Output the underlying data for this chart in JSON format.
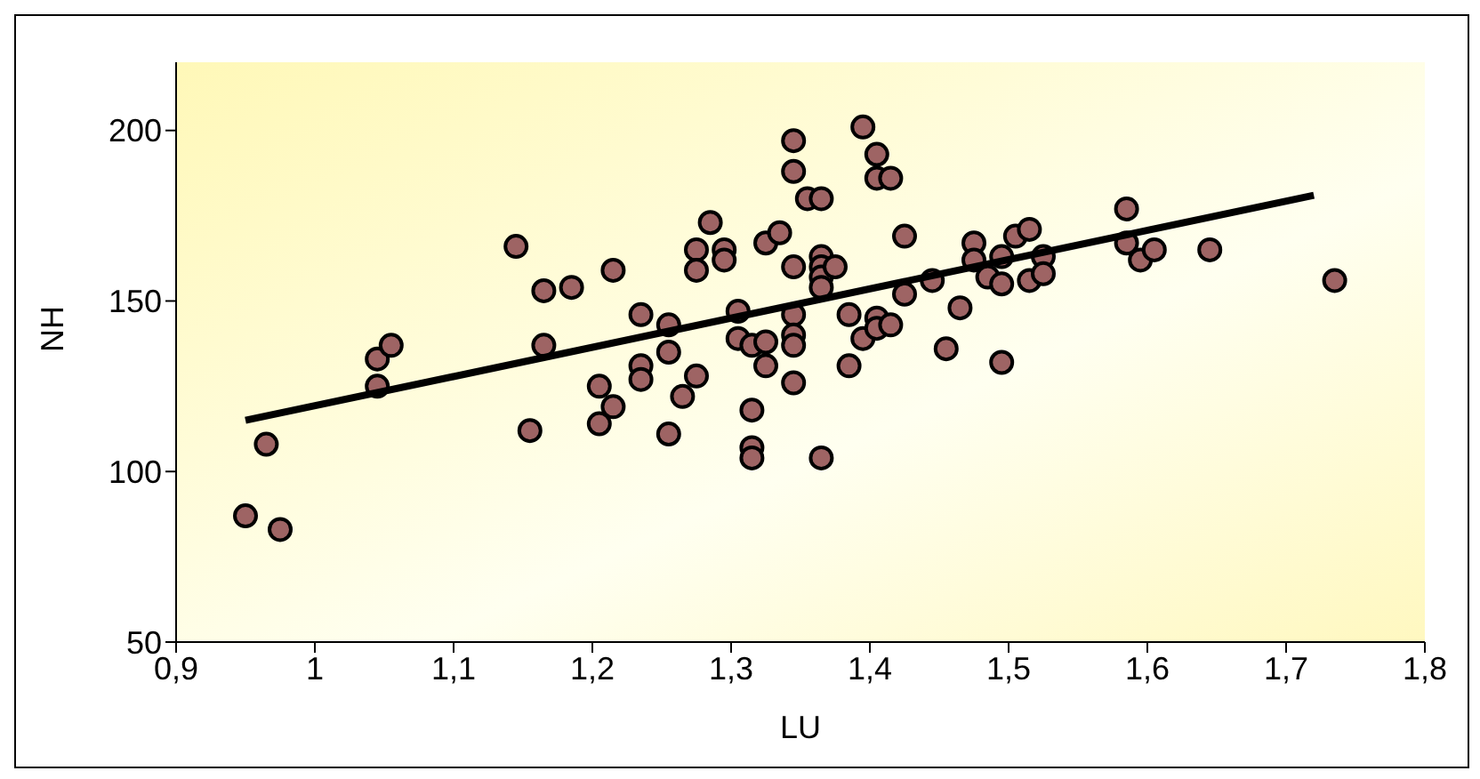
{
  "chart_data": {
    "type": "scatter",
    "xlabel": "LU",
    "ylabel": "NH",
    "xlim": [
      0.9,
      1.8
    ],
    "ylim": [
      50,
      220
    ],
    "xticks": [
      {
        "value": 0.9,
        "label": "0,9"
      },
      1,
      {
        "value": 1.1,
        "label": "1,1"
      },
      {
        "value": 1.2,
        "label": "1,2"
      },
      {
        "value": 1.3,
        "label": "1,3"
      },
      {
        "value": 1.4,
        "label": "1,4"
      },
      {
        "value": 1.5,
        "label": "1,5"
      },
      {
        "value": 1.6,
        "label": "1,6"
      },
      {
        "value": 1.7,
        "label": "1,7"
      },
      {
        "value": 1.8,
        "label": "1,8"
      }
    ],
    "yticks": [
      50,
      100,
      150,
      200
    ],
    "grid": false,
    "series": [
      {
        "color": "#9e6464",
        "marker": "circle",
        "x": [
          0.95,
          0.965,
          0.975,
          1.045,
          1.045,
          1.055,
          1.145,
          1.155,
          1.165,
          1.165,
          1.185,
          1.205,
          1.205,
          1.215,
          1.215,
          1.235,
          1.235,
          1.235,
          1.255,
          1.255,
          1.255,
          1.265,
          1.275,
          1.275,
          1.275,
          1.285,
          1.295,
          1.295,
          1.305,
          1.305,
          1.315,
          1.315,
          1.315,
          1.315,
          1.325,
          1.325,
          1.325,
          1.335,
          1.345,
          1.345,
          1.345,
          1.345,
          1.345,
          1.345,
          1.345,
          1.355,
          1.365,
          1.365,
          1.365,
          1.365,
          1.365,
          1.365,
          1.375,
          1.385,
          1.385,
          1.395,
          1.395,
          1.405,
          1.405,
          1.405,
          1.405,
          1.415,
          1.415,
          1.425,
          1.425,
          1.445,
          1.455,
          1.465,
          1.475,
          1.475,
          1.485,
          1.495,
          1.495,
          1.495,
          1.505,
          1.515,
          1.515,
          1.525,
          1.525,
          1.585,
          1.585,
          1.595,
          1.605,
          1.645,
          1.735
        ],
        "values": [
          87,
          108,
          83,
          125,
          133,
          137,
          166,
          112,
          153,
          137,
          154,
          125,
          114,
          119,
          159,
          146,
          131,
          127,
          143,
          135,
          111,
          122,
          165,
          159,
          128,
          173,
          165,
          162,
          147,
          139,
          137,
          118,
          107,
          104,
          167,
          131,
          138,
          170,
          197,
          188,
          160,
          146,
          140,
          137,
          126,
          180,
          180,
          163,
          160,
          157,
          154,
          104,
          160,
          146,
          131,
          201,
          139,
          193,
          186,
          145,
          142,
          186,
          143,
          169,
          152,
          156,
          136,
          148,
          167,
          162,
          157,
          163,
          155,
          132,
          169,
          171,
          156,
          163,
          158,
          177,
          167,
          162,
          165,
          165,
          156
        ]
      },
      {
        "type": "line",
        "color": "#000000",
        "x": [
          0.95,
          1.72
        ],
        "values": [
          115,
          181
        ]
      }
    ]
  }
}
